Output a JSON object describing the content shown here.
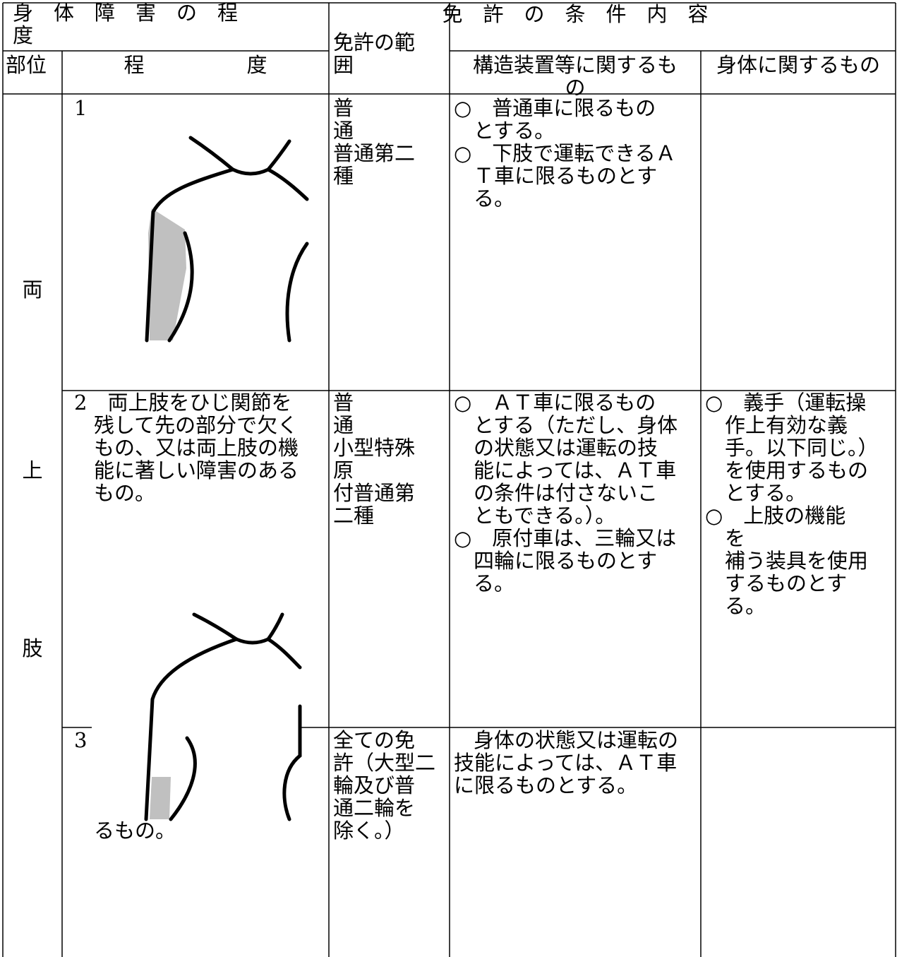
{
  "header": {
    "degree_title": [
      "身　体　障　害　の　程",
      "度"
    ],
    "license_range": [
      "免許の範",
      "囲"
    ],
    "conditions_title": "免　許　の　条　件　内　容",
    "part": "部位",
    "degree": "程　　　　　度",
    "structural": [
      "構造装置等に関するも",
      "の"
    ],
    "physical": "身体に関するもの"
  },
  "body_part": [
    "両",
    "上",
    "肢"
  ],
  "rows": [
    {
      "degree": [
        "1"
      ],
      "license": [
        "普",
        "通",
        "普通第二",
        "種"
      ],
      "structural": [
        "○　普通車に限るもの",
        "とする。",
        "○　下肢で運転できるＡ",
        "Ｔ車に限るものとす",
        "る。"
      ]
    },
    {
      "degree": [
        "2　両上肢をひじ関節を",
        "残して先の部分で欠く",
        "もの、又は両上肢の機",
        "能に著しい障害のある",
        "もの。"
      ],
      "license": [
        "普",
        "通",
        "小型特殊",
        "原",
        "付普通第",
        "二種"
      ],
      "structural": [
        "○　ＡＴ車に限るもの",
        "とする（ただし、身体",
        "の状態又は運転の技",
        "能によっては、ＡＴ車",
        "の条件は付さないこ",
        "ともできる。）。",
        "○　原付車は、三輪又は",
        "四輪に限るものとす",
        "る。"
      ],
      "physical": [
        "○　義手（運転操",
        "作上有効な義",
        "手。以下同じ。）",
        "を使用するもの",
        "とする。",
        "○　上肢の機能",
        "を",
        "補う装具を使用",
        "するものとす",
        "る。"
      ]
    },
    {
      "degree": [
        "3",
        "",
        "",
        "",
        "るもの。"
      ],
      "license": [
        "全ての免",
        "許（大型二",
        "輪及び普",
        "通二輪を",
        "除く。）"
      ],
      "structural": [
        "身体の状態又は運転の",
        "技能によっては、ＡＴ車",
        "に限るものとする。"
      ]
    }
  ]
}
